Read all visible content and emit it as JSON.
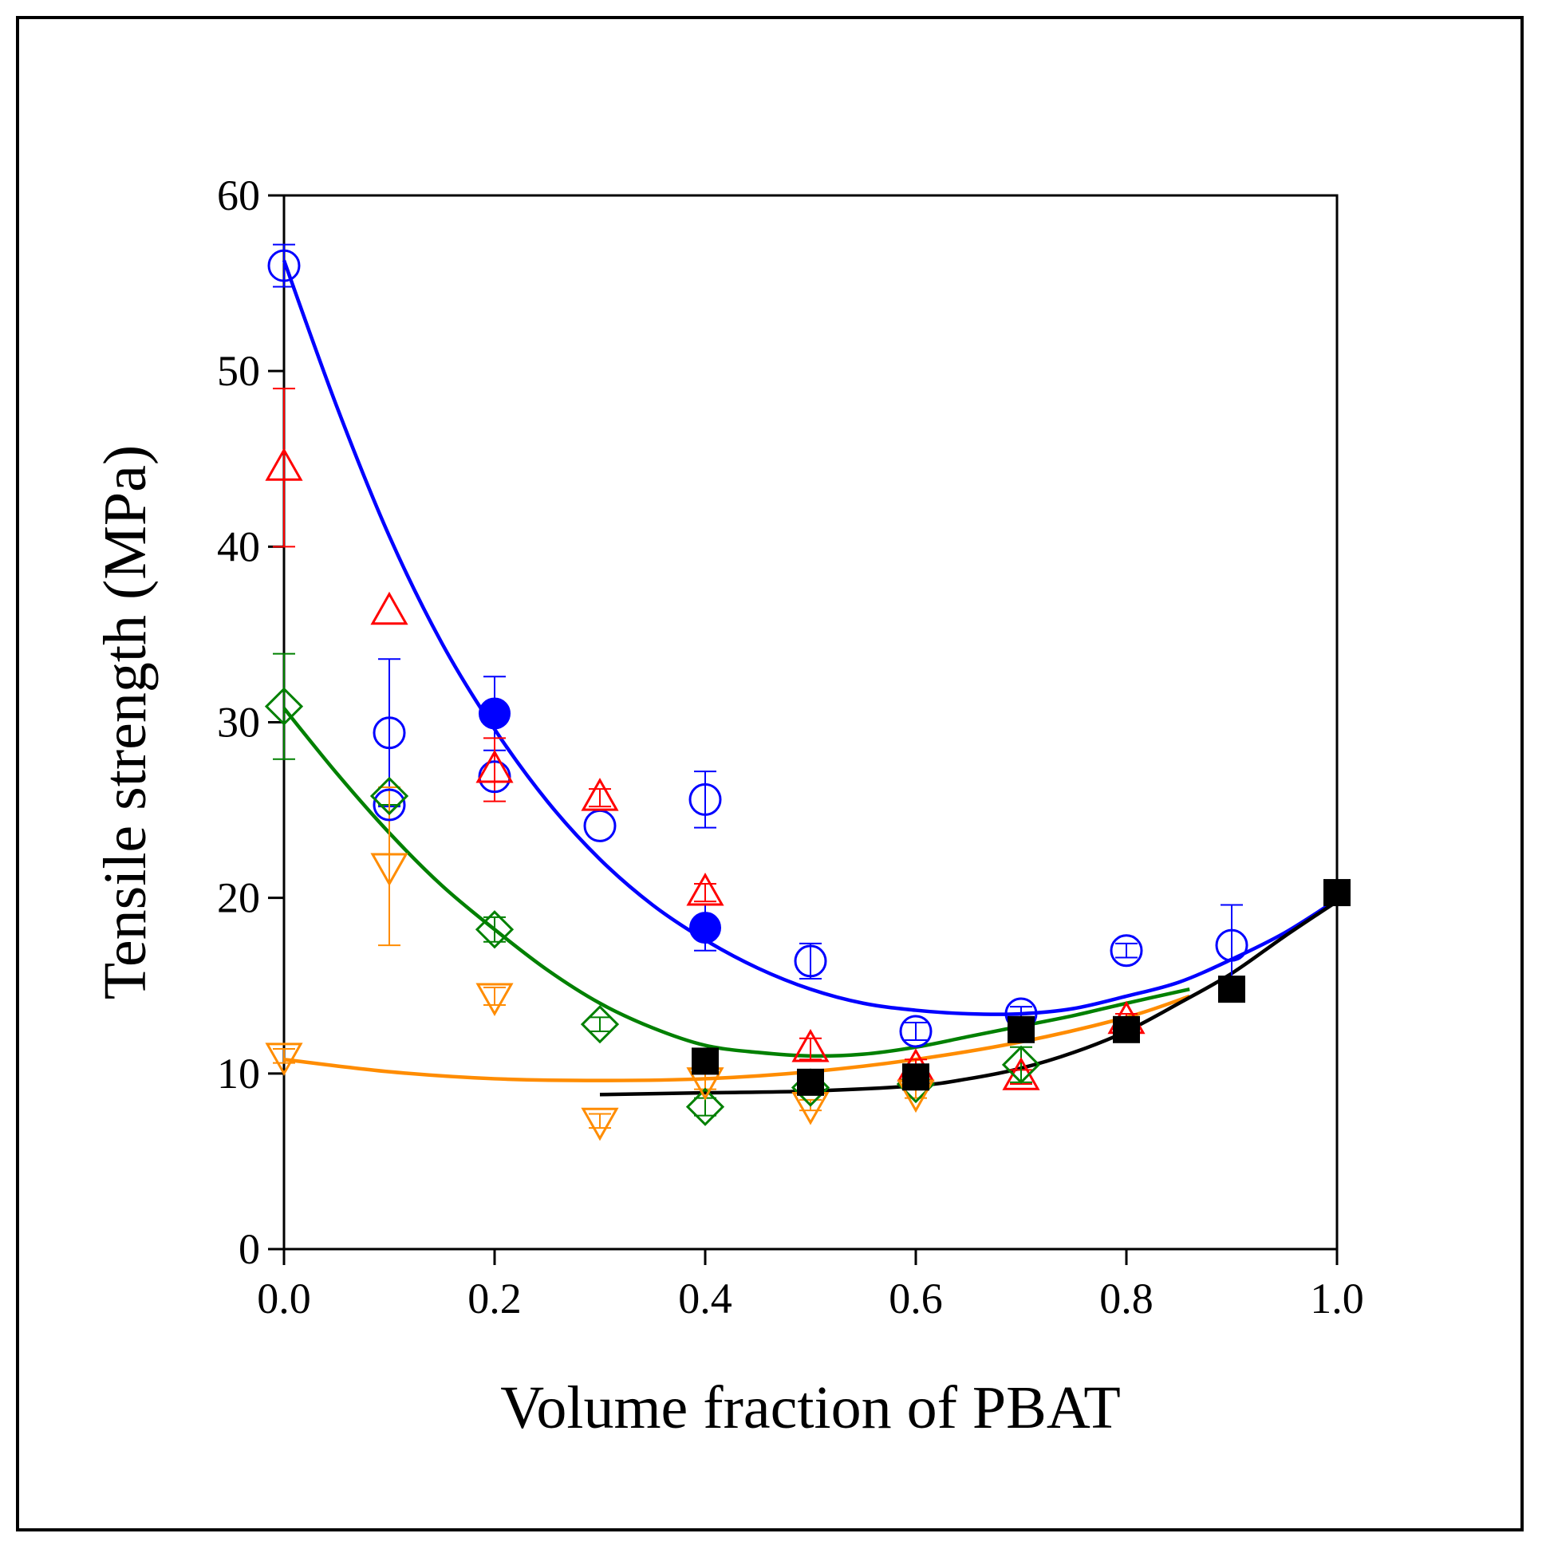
{
  "chart_data": {
    "type": "scatter",
    "title": "",
    "xlabel": "Volume fraction of PBAT",
    "ylabel": "Tensile strength (MPa)",
    "xlim": [
      0.0,
      1.0
    ],
    "ylim": [
      0,
      60
    ],
    "xticks": [
      "0.0",
      "0.2",
      "0.4",
      "0.6",
      "0.8",
      "1.0"
    ],
    "yticks": [
      "0",
      "10",
      "20",
      "30",
      "40",
      "50",
      "60"
    ],
    "grid": false,
    "legend": "none",
    "series": [
      {
        "name": "blue-open-circle",
        "marker": "circle-open",
        "color": "#0000ff",
        "points": [
          {
            "x": 0.0,
            "y": 56.0,
            "err": 1.2
          },
          {
            "x": 0.1,
            "y": 29.4,
            "err": 4.2
          },
          {
            "x": 0.1,
            "y": 25.3,
            "err": 0
          },
          {
            "x": 0.2,
            "y": 26.9,
            "err": 0
          },
          {
            "x": 0.3,
            "y": 24.1,
            "err": 0
          },
          {
            "x": 0.4,
            "y": 25.6,
            "err": 1.6
          },
          {
            "x": 0.5,
            "y": 16.4,
            "err": 1.0
          },
          {
            "x": 0.6,
            "y": 12.4,
            "err": 0.5
          },
          {
            "x": 0.7,
            "y": 13.4,
            "err": 0.4
          },
          {
            "x": 0.8,
            "y": 17.0,
            "err": 0.4
          },
          {
            "x": 0.9,
            "y": 17.3,
            "err": 2.3
          }
        ]
      },
      {
        "name": "blue-filled-circle",
        "marker": "circle-filled",
        "color": "#0000ff",
        "points": [
          {
            "x": 0.2,
            "y": 30.5,
            "err": 2.1
          },
          {
            "x": 0.4,
            "y": 18.3,
            "err": 1.3
          }
        ]
      },
      {
        "name": "red-triangle-up",
        "marker": "triangle-up-open",
        "color": "#ff0000",
        "points": [
          {
            "x": 0.0,
            "y": 44.5,
            "err": 4.5
          },
          {
            "x": 0.1,
            "y": 36.3,
            "err": 0
          },
          {
            "x": 0.2,
            "y": 27.3,
            "err": 1.8
          },
          {
            "x": 0.3,
            "y": 25.7,
            "err": 0.5
          },
          {
            "x": 0.4,
            "y": 20.3,
            "err": 0.5
          },
          {
            "x": 0.5,
            "y": 11.4,
            "err": 0.6
          },
          {
            "x": 0.6,
            "y": 10.3,
            "err": 0.5
          },
          {
            "x": 0.7,
            "y": 9.8,
            "err": 0.4
          },
          {
            "x": 0.8,
            "y": 13.0,
            "err": 0.4
          }
        ]
      },
      {
        "name": "green-diamond",
        "marker": "diamond-open",
        "color": "#008000",
        "points": [
          {
            "x": 0.0,
            "y": 30.9,
            "err": 3.0
          },
          {
            "x": 0.1,
            "y": 25.8,
            "err": 0.5
          },
          {
            "x": 0.2,
            "y": 18.2,
            "err": 0.7
          },
          {
            "x": 0.3,
            "y": 12.8,
            "err": 0.4
          },
          {
            "x": 0.4,
            "y": 8.1,
            "err": 0.5
          },
          {
            "x": 0.5,
            "y": 9.2,
            "err": 0.3
          },
          {
            "x": 0.6,
            "y": 9.4,
            "err": 0.3
          },
          {
            "x": 0.7,
            "y": 10.5,
            "err": 1.0
          }
        ]
      },
      {
        "name": "orange-triangle-down",
        "marker": "triangle-down-open",
        "color": "#ff8c00",
        "points": [
          {
            "x": 0.0,
            "y": 11.0,
            "err": 0.4
          },
          {
            "x": 0.1,
            "y": 21.8,
            "err": 4.5
          },
          {
            "x": 0.2,
            "y": 14.4,
            "err": 0.5
          },
          {
            "x": 0.3,
            "y": 7.3,
            "err": 0.4
          },
          {
            "x": 0.4,
            "y": 9.6,
            "err": 0.5
          },
          {
            "x": 0.5,
            "y": 8.2,
            "err": 0.3
          },
          {
            "x": 0.6,
            "y": 8.9,
            "err": 0.3
          }
        ]
      },
      {
        "name": "black-square",
        "marker": "square-filled",
        "color": "#000000",
        "points": [
          {
            "x": 0.4,
            "y": 10.7,
            "err": 0
          },
          {
            "x": 0.5,
            "y": 9.5,
            "err": 0
          },
          {
            "x": 0.6,
            "y": 9.8,
            "err": 0
          },
          {
            "x": 0.7,
            "y": 12.5,
            "err": 0
          },
          {
            "x": 0.8,
            "y": 12.5,
            "err": 0
          },
          {
            "x": 0.9,
            "y": 14.8,
            "err": 0
          },
          {
            "x": 1.0,
            "y": 20.3,
            "err": 0
          }
        ]
      }
    ],
    "fit_curves": [
      {
        "name": "blue-fit",
        "color": "#0000ff",
        "x": [
          0.0,
          0.05,
          0.1,
          0.15,
          0.2,
          0.25,
          0.3,
          0.35,
          0.4,
          0.45,
          0.5,
          0.55,
          0.6,
          0.65,
          0.7,
          0.75,
          0.8,
          0.85,
          0.9,
          0.95,
          1.0
        ],
        "y": [
          56.3,
          48.0,
          40.6,
          34.5,
          29.6,
          25.5,
          22.2,
          19.6,
          17.6,
          16.0,
          14.8,
          14.0,
          13.6,
          13.4,
          13.4,
          13.7,
          14.4,
          15.2,
          16.5,
          18.0,
          19.9
        ]
      },
      {
        "name": "green-fit",
        "color": "#008000",
        "x": [
          0.0,
          0.05,
          0.1,
          0.15,
          0.2,
          0.25,
          0.3,
          0.35,
          0.4,
          0.45,
          0.5,
          0.55,
          0.6,
          0.65,
          0.7,
          0.75,
          0.8,
          0.86
        ],
        "y": [
          30.8,
          27.1,
          23.7,
          20.7,
          18.2,
          15.9,
          14.0,
          12.6,
          11.6,
          11.2,
          11.0,
          11.1,
          11.5,
          12.1,
          12.7,
          13.3,
          14.0,
          14.8
        ]
      },
      {
        "name": "orange-fit",
        "color": "#ff8c00",
        "x": [
          0.0,
          0.1,
          0.2,
          0.3,
          0.4,
          0.5,
          0.6,
          0.7,
          0.8,
          0.86
        ],
        "y": [
          10.8,
          10.1,
          9.7,
          9.6,
          9.7,
          10.1,
          10.8,
          11.8,
          13.2,
          14.4
        ]
      },
      {
        "name": "black-fit",
        "color": "#000000",
        "x": [
          0.3,
          0.4,
          0.5,
          0.6,
          0.65,
          0.7,
          0.75,
          0.8,
          0.85,
          0.9,
          0.95,
          1.0
        ],
        "y": [
          8.8,
          8.9,
          9.0,
          9.3,
          9.7,
          10.3,
          11.2,
          12.4,
          14.0,
          15.7,
          17.8,
          19.8
        ]
      }
    ]
  }
}
